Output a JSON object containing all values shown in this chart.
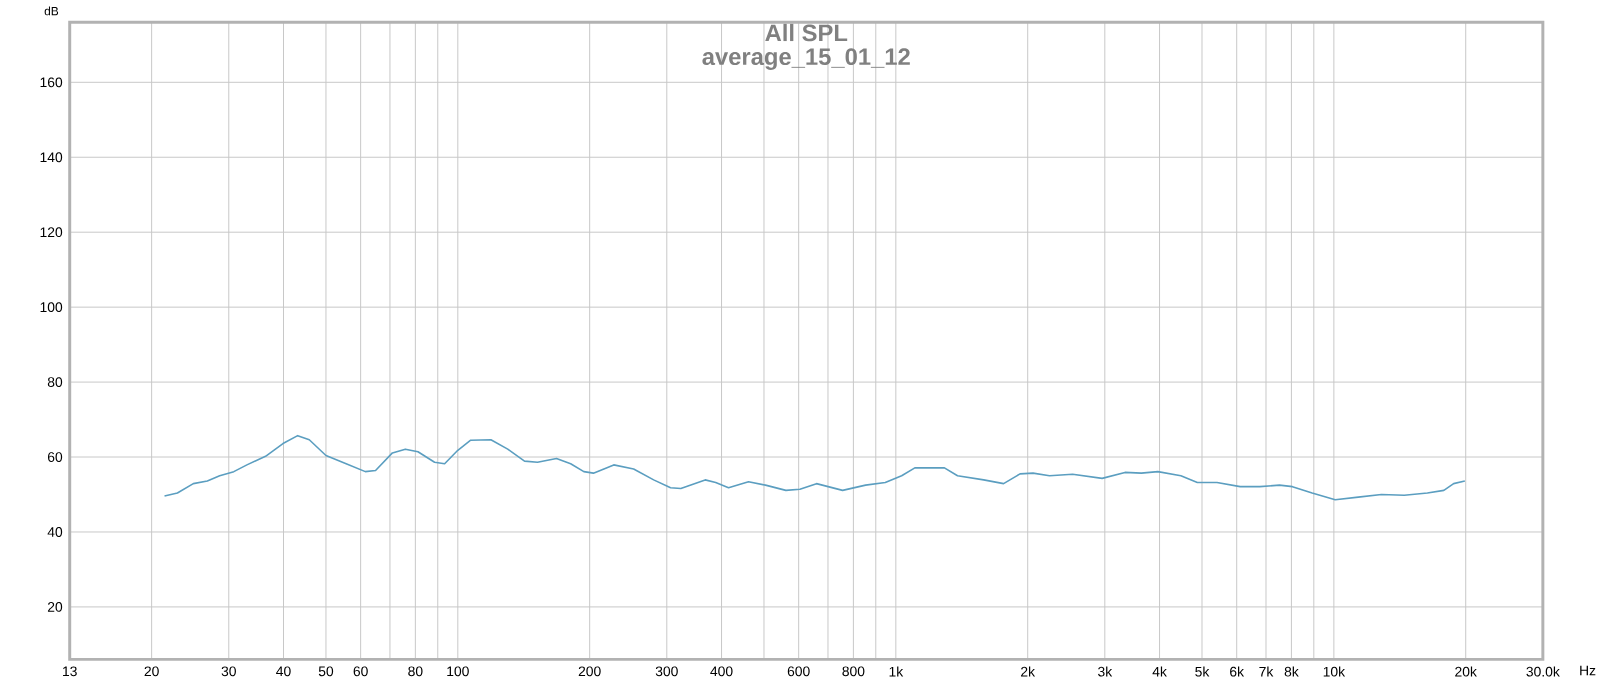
{
  "chart_data": {
    "type": "line",
    "title": "All SPL",
    "subtitle": "average_15_01_12",
    "xlabel": "Hz",
    "ylabel": "dB",
    "log": "x",
    "grid": true,
    "marker": "none",
    "line_style": "solid",
    "xlim": [
      13,
      30000
    ],
    "ylim": [
      6,
      176
    ],
    "xticks": [
      13,
      20,
      30,
      40,
      50,
      60,
      {
        "value": 70,
        "label": null
      },
      80,
      {
        "value": 90,
        "label": null
      },
      100,
      200,
      300,
      400,
      {
        "value": 500,
        "label": null
      },
      600,
      {
        "value": 700,
        "label": null
      },
      800,
      {
        "value": 900,
        "label": null
      },
      {
        "value": 1000,
        "label": "1k"
      },
      {
        "value": 2000,
        "label": "2k"
      },
      {
        "value": 3000,
        "label": "3k"
      },
      {
        "value": 4000,
        "label": "4k"
      },
      {
        "value": 5000,
        "label": "5k"
      },
      {
        "value": 6000,
        "label": "6k"
      },
      {
        "value": 7000,
        "label": "7k"
      },
      {
        "value": 8000,
        "label": "8k"
      },
      {
        "value": 9000,
        "label": null
      },
      {
        "value": 10000,
        "label": "10k"
      },
      {
        "value": 20000,
        "label": "20k"
      },
      {
        "value": 30000,
        "label": "30.0k"
      }
    ],
    "yticks": [
      20,
      40,
      60,
      80,
      100,
      120,
      140,
      160
    ],
    "series": [
      {
        "color": "#5b9ec0",
        "x": [
          21.4,
          22.9,
          24.9,
          26.8,
          28.6,
          30.8,
          33,
          36.4,
          39.9,
          43.1,
          45.8,
          50,
          55.6,
          61.5,
          64.9,
          70.9,
          75.9,
          81.1,
          88.5,
          93.3,
          100,
          107,
          119,
          130,
          142,
          152,
          168,
          181,
          194,
          204,
          227,
          252,
          280,
          306,
          323,
          367,
          388,
          415,
          461,
          504,
          561,
          604,
          659,
          756,
          853,
          946,
          1031,
          1105,
          1291,
          1383,
          1587,
          1762,
          1921,
          2057,
          2243,
          2532,
          2958,
          3335,
          3635,
          3965,
          4475,
          4879,
          5410,
          6110,
          6776,
          7514,
          8044,
          8920,
          10070,
          11370,
          12840,
          14480,
          16350,
          17830,
          18770,
          19910
        ],
        "values": [
          49.6,
          50.4,
          52.9,
          53.6,
          55,
          56.1,
          57.9,
          60.2,
          63.6,
          65.7,
          64.6,
          60.4,
          58.2,
          56.1,
          56.4,
          61.1,
          62.1,
          61.4,
          58.6,
          58.2,
          61.8,
          64.5,
          64.6,
          62.1,
          58.9,
          58.6,
          59.6,
          58.2,
          56.1,
          55.7,
          57.9,
          56.8,
          53.9,
          51.8,
          51.6,
          53.9,
          53.2,
          51.8,
          53.4,
          52.5,
          51.1,
          51.4,
          52.9,
          51.1,
          52.5,
          53.2,
          55,
          57.1,
          57.1,
          55,
          53.9,
          52.9,
          55.5,
          55.7,
          55,
          55.4,
          54.3,
          55.9,
          55.7,
          56.1,
          55,
          53.2,
          53.2,
          52.1,
          52.1,
          52.5,
          52.1,
          50.4,
          48.6,
          49.3,
          50,
          49.8,
          50.4,
          51.1,
          52.9,
          53.6
        ]
      }
    ]
  }
}
